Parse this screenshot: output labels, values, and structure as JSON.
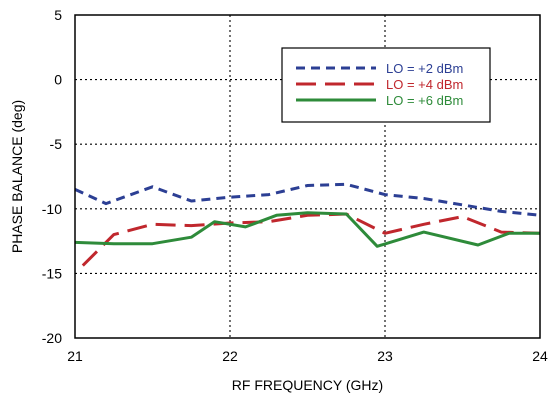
{
  "chart_data": {
    "type": "line",
    "title": "",
    "xlabel": "RF FREQUENCY (GHz)",
    "ylabel": "PHASE BALANCE  (deg)",
    "xlim": [
      21,
      24
    ],
    "ylim": [
      -20,
      5
    ],
    "xticks": [
      21,
      22,
      23,
      24
    ],
    "yticks": [
      5,
      0,
      -5,
      -10,
      -15,
      -20
    ],
    "x_tick_labels": [
      "21",
      "22",
      "23",
      "24"
    ],
    "y_tick_labels": [
      "5",
      "0",
      "-5",
      "-10",
      "-15",
      "-20"
    ],
    "grid": true,
    "legend_position": "top-right",
    "series": [
      {
        "name": "LO = +2 dBm",
        "color": "#2c3f94",
        "dash": "dashed-short",
        "x": [
          21.0,
          21.2,
          21.5,
          21.75,
          22.0,
          22.25,
          22.5,
          22.75,
          23.0,
          23.25,
          23.5,
          23.75,
          24.0
        ],
        "y": [
          -8.5,
          -9.6,
          -8.3,
          -9.4,
          -9.1,
          -8.9,
          -8.2,
          -8.1,
          -8.9,
          -9.2,
          -9.7,
          -10.2,
          -10.5
        ]
      },
      {
        "name": "LO = +4 dBm",
        "color": "#c0272d",
        "dash": "dashed-long",
        "x": [
          21.05,
          21.25,
          21.5,
          21.75,
          22.0,
          22.25,
          22.5,
          22.75,
          23.0,
          23.25,
          23.5,
          23.75,
          24.0
        ],
        "y": [
          -14.4,
          -12.0,
          -11.2,
          -11.3,
          -11.1,
          -11.0,
          -10.5,
          -10.4,
          -11.9,
          -11.2,
          -10.6,
          -11.8,
          -11.9
        ]
      },
      {
        "name": "LO = +6 dBm",
        "color": "#2e8b3a",
        "dash": "solid",
        "x": [
          21.0,
          21.25,
          21.5,
          21.75,
          21.9,
          22.1,
          22.3,
          22.5,
          22.75,
          22.95,
          23.25,
          23.6,
          23.8,
          24.0
        ],
        "y": [
          -12.6,
          -12.7,
          -12.7,
          -12.2,
          -11.0,
          -11.4,
          -10.5,
          -10.3,
          -10.4,
          -12.9,
          -11.8,
          -12.8,
          -11.9,
          -11.9
        ]
      }
    ]
  }
}
